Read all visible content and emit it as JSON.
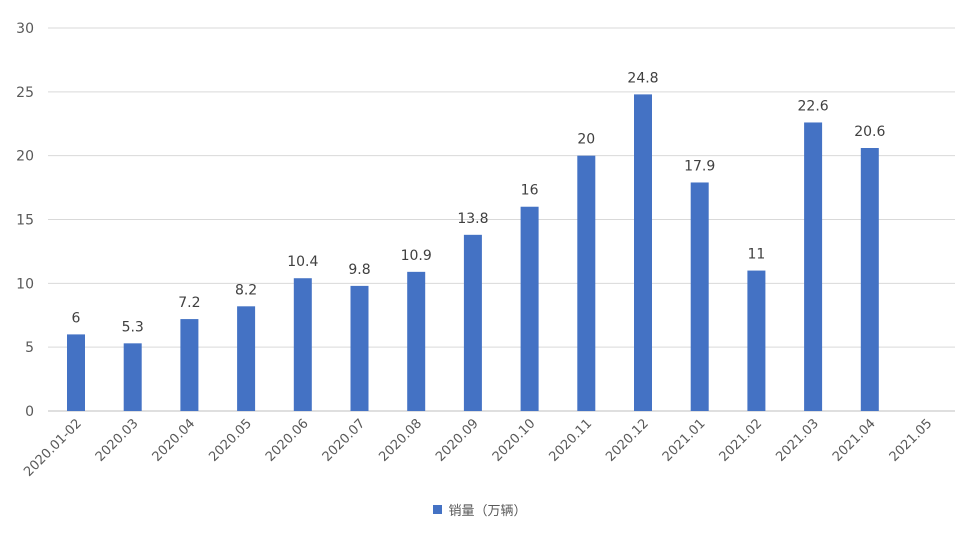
{
  "chart_data": {
    "type": "bar",
    "categories": [
      "2020.01-02",
      "2020.03",
      "2020.04",
      "2020.05",
      "2020.06",
      "2020.07",
      "2020.08",
      "2020.09",
      "2020.10",
      "2020.11",
      "2020.12",
      "2021.01",
      "2021.02",
      "2021.03",
      "2021.04",
      "2021.05"
    ],
    "series": [
      {
        "name": "销量（万辆）",
        "values": [
          6,
          5.3,
          7.2,
          8.2,
          10.4,
          9.8,
          10.9,
          13.8,
          16,
          20,
          24.8,
          17.9,
          11,
          22.6,
          20.6,
          null
        ],
        "labels": [
          "6",
          "5.3",
          "7.2",
          "8.2",
          "10.4",
          "9.8",
          "10.9",
          "13.8",
          "16",
          "20",
          "24.8",
          "17.9",
          "11",
          "22.6",
          "20.6",
          ""
        ]
      }
    ],
    "ylim": [
      0,
      30
    ],
    "yticks": [
      "0",
      "5",
      "10",
      "15",
      "20",
      "25",
      "30"
    ],
    "grid": true,
    "legend_position": "bottom",
    "colors": {
      "bar": "#4472C4",
      "grid": "#d9d9d9"
    }
  }
}
